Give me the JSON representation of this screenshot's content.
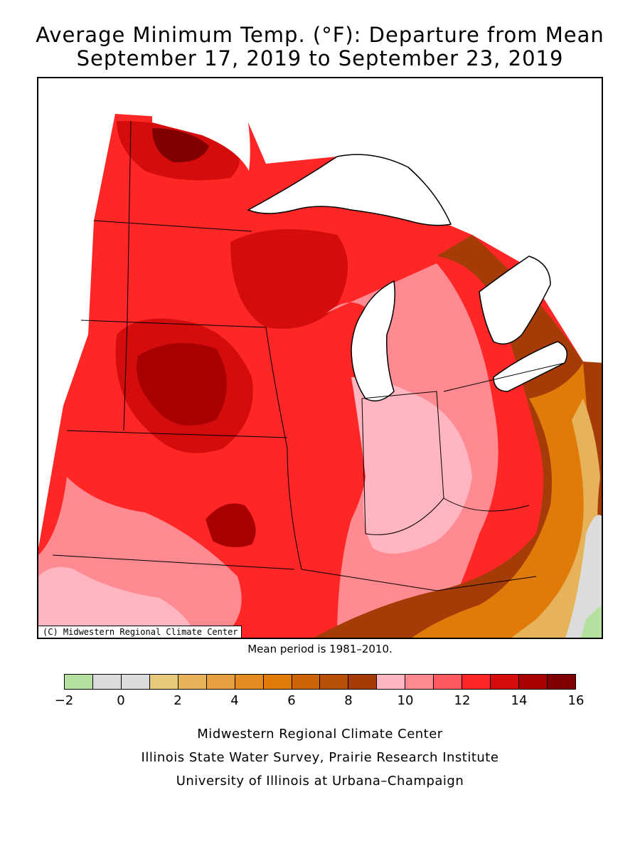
{
  "title_line1": "Average Minimum Temp. (°F): Departure from Mean",
  "title_line2": "September 17, 2019 to September 23, 2019",
  "map": {
    "copyright": "(C) Midwestern Regional Climate Center",
    "variable": "Average minimum temperature departure from mean",
    "units": "°F",
    "dominant_pattern": {
      "west_upper_midwest": "12 to 16",
      "central_illinois_indiana": "9 to 11",
      "east_ohio_kentucky": "1 to 8",
      "far_east_edge": "-2 to 1"
    }
  },
  "mean_period": "Mean period is 1981–2010.",
  "legend": {
    "bins": [
      {
        "from": -2,
        "to": -1,
        "color": "#b5e1a0"
      },
      {
        "from": -1,
        "to": 0,
        "color": "#dcdcdc"
      },
      {
        "from": 0,
        "to": 1,
        "color": "#dcdcdc"
      },
      {
        "from": 1,
        "to": 2,
        "color": "#e8c87a"
      },
      {
        "from": 2,
        "to": 3,
        "color": "#e6b25a"
      },
      {
        "from": 3,
        "to": 4,
        "color": "#e6a040"
      },
      {
        "from": 4,
        "to": 5,
        "color": "#e48c22"
      },
      {
        "from": 5,
        "to": 6,
        "color": "#e07a08"
      },
      {
        "from": 6,
        "to": 7,
        "color": "#cd6408"
      },
      {
        "from": 7,
        "to": 8,
        "color": "#b85008"
      },
      {
        "from": 8,
        "to": 9,
        "color": "#a53c08"
      },
      {
        "from": 9,
        "to": 10,
        "color": "#ffb6c1"
      },
      {
        "from": 10,
        "to": 11,
        "color": "#ff8a92"
      },
      {
        "from": 11,
        "to": 12,
        "color": "#ff5a5e"
      },
      {
        "from": 12,
        "to": 13,
        "color": "#ff2626"
      },
      {
        "from": 13,
        "to": 14,
        "color": "#d40c0c"
      },
      {
        "from": 14,
        "to": 15,
        "color": "#a80000"
      },
      {
        "from": 15,
        "to": 16,
        "color": "#800000"
      }
    ],
    "labels": [
      "−2",
      "0",
      "2",
      "4",
      "6",
      "8",
      "10",
      "12",
      "14",
      "16"
    ]
  },
  "footer": {
    "line1": "Midwestern Regional Climate Center",
    "line2": "Illinois State Water Survey, Prairie Research Institute",
    "line3": "University of Illinois at Urbana–Champaign"
  }
}
